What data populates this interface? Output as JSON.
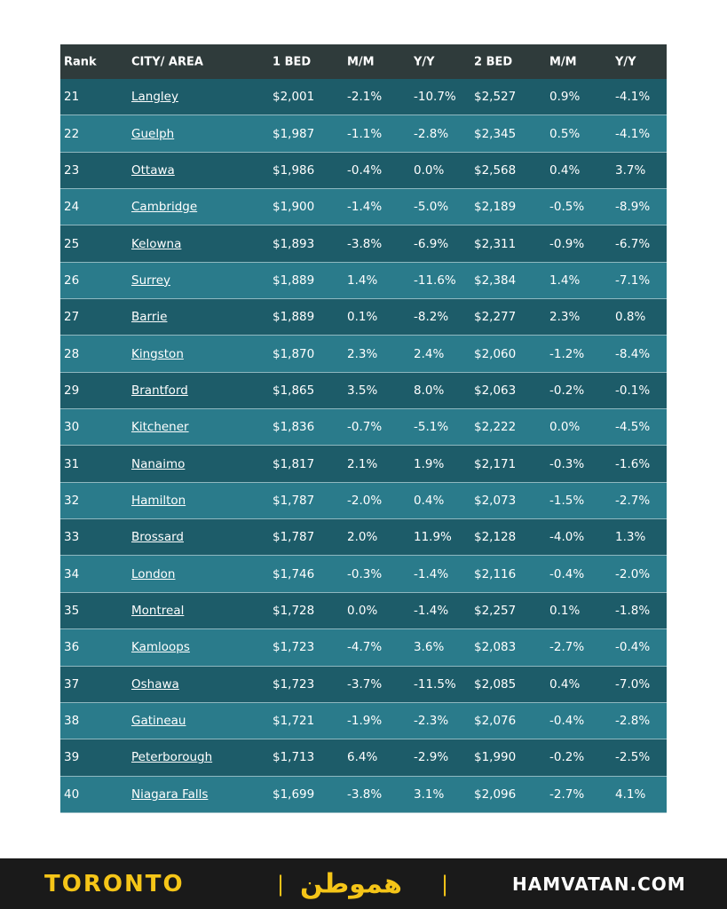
{
  "table": {
    "header": [
      "Rank",
      "CITY/ AREA",
      "1 BED",
      "M/M",
      "Y/Y",
      "2 BED",
      "M/M",
      "Y/Y"
    ],
    "rows": [
      [
        "21",
        "Langley",
        "$2,001",
        "-2.1%",
        "-10.7%",
        "$2,527",
        "0.9%",
        "-4.1%"
      ],
      [
        "22",
        "Guelph",
        "$1,987",
        "-1.1%",
        "-2.8%",
        "$2,345",
        "0.5%",
        "-4.1%"
      ],
      [
        "23",
        "Ottawa",
        "$1,986",
        "-0.4%",
        "0.0%",
        "$2,568",
        "0.4%",
        "3.7%"
      ],
      [
        "24",
        "Cambridge",
        "$1,900",
        "-1.4%",
        "-5.0%",
        "$2,189",
        "-0.5%",
        "-8.9%"
      ],
      [
        "25",
        "Kelowna",
        "$1,893",
        "-3.8%",
        "-6.9%",
        "$2,311",
        "-0.9%",
        "-6.7%"
      ],
      [
        "26",
        "Surrey",
        "$1,889",
        "1.4%",
        "-11.6%",
        "$2,384",
        "1.4%",
        "-7.1%"
      ],
      [
        "27",
        "Barrie",
        "$1,889",
        "0.1%",
        "-8.2%",
        "$2,277",
        "2.3%",
        "0.8%"
      ],
      [
        "28",
        "Kingston",
        "$1,870",
        "2.3%",
        "2.4%",
        "$2,060",
        "-1.2%",
        "-8.4%"
      ],
      [
        "29",
        "Brantford",
        "$1,865",
        "3.5%",
        "8.0%",
        "$2,063",
        "-0.2%",
        "-0.1%"
      ],
      [
        "30",
        "Kitchener",
        "$1,836",
        "-0.7%",
        "-5.1%",
        "$2,222",
        "0.0%",
        "-4.5%"
      ],
      [
        "31",
        "Nanaimo",
        "$1,817",
        "2.1%",
        "1.9%",
        "$2,171",
        "-0.3%",
        "-1.6%"
      ],
      [
        "32",
        "Hamilton",
        "$1,787",
        "-2.0%",
        "0.4%",
        "$2,073",
        "-1.5%",
        "-2.7%"
      ],
      [
        "33",
        "Brossard",
        "$1,787",
        "2.0%",
        "11.9%",
        "$2,128",
        "-4.0%",
        "1.3%"
      ],
      [
        "34",
        "London",
        "$1,746",
        "-0.3%",
        "-1.4%",
        "$2,116",
        "-0.4%",
        "-2.0%"
      ],
      [
        "35",
        "Montreal",
        "$1,728",
        "0.0%",
        "-1.4%",
        "$2,257",
        "0.1%",
        "-1.8%"
      ],
      [
        "36",
        "Kamloops",
        "$1,723",
        "-4.7%",
        "3.6%",
        "$2,083",
        "-2.7%",
        "-0.4%"
      ],
      [
        "37",
        "Oshawa",
        "$1,723",
        "-3.7%",
        "-11.5%",
        "$2,085",
        "0.4%",
        "-7.0%"
      ],
      [
        "38",
        "Gatineau",
        "$1,721",
        "-1.9%",
        "-2.3%",
        "$2,076",
        "-0.4%",
        "-2.8%"
      ],
      [
        "39",
        "Peterborough",
        "$1,713",
        "6.4%",
        "-2.9%",
        "$1,990",
        "-0.2%",
        "-2.5%"
      ],
      [
        "40",
        "Niagara Falls",
        "$1,699",
        "-3.8%",
        "3.1%",
        "$2,096",
        "-2.7%",
        "4.1%"
      ]
    ]
  },
  "footer": {
    "left": "TORONTO",
    "logo": "هموطن",
    "right": "HAMVATAN.COM"
  }
}
